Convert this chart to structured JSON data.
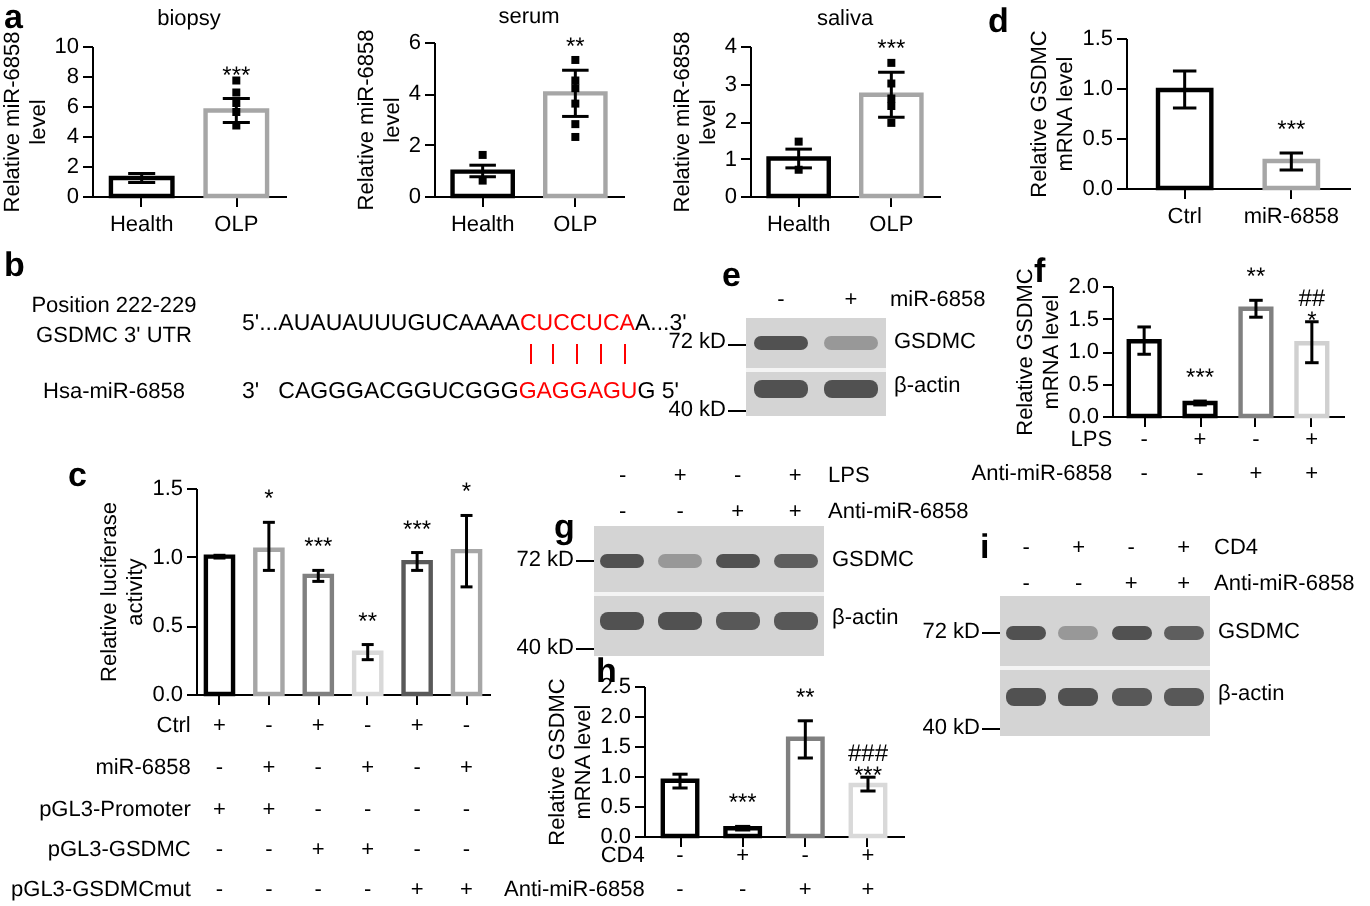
{
  "chart_data": [
    {
      "type": "bar",
      "title": "biopsy",
      "ylabel": "Relative miR-6858\nlevel",
      "categories": [
        "Health",
        "OLP"
      ],
      "ylim": [
        0,
        10
      ],
      "yticks": [
        0,
        2,
        4,
        6,
        8,
        10
      ],
      "marker": "square",
      "annotations": [
        "a"
      ],
      "series": [
        {
          "type": "bar",
          "values": [
            1.2,
            5.7
          ],
          "colors": [
            "#000000",
            "#a6a6a6"
          ],
          "errors": [
            [
              0.9,
              1.5
            ],
            [
              4.9,
              6.5
            ]
          ],
          "value_labels": [
            null,
            "***"
          ]
        },
        {
          "type": "scatter",
          "color": "#000000",
          "x": [
            "OLP",
            "OLP",
            "OLP",
            "OLP",
            "OLP"
          ],
          "values": [
            7.7,
            6.9,
            6.2,
            5.6,
            4.7
          ]
        }
      ]
    },
    {
      "type": "bar",
      "title": "serum",
      "ylabel": "Relative miR-6858\nlevel",
      "categories": [
        "Health",
        "OLP"
      ],
      "ylim": [
        0,
        6
      ],
      "yticks": [
        0,
        2,
        4,
        6
      ],
      "marker": "square",
      "series": [
        {
          "type": "bar",
          "values": [
            0.95,
            4.0
          ],
          "colors": [
            "#000000",
            "#a6a6a6"
          ],
          "errors": [
            [
              0.75,
              1.2
            ],
            [
              3.1,
              4.9
            ]
          ],
          "value_labels": [
            null,
            "**"
          ]
        },
        {
          "type": "scatter",
          "color": "#000000",
          "x": [
            "Health",
            "Health",
            "OLP",
            "OLP",
            "OLP",
            "OLP",
            "OLP",
            "OLP"
          ],
          "values": [
            1.6,
            0.6,
            5.3,
            4.5,
            4.2,
            3.6,
            2.8,
            2.3
          ]
        }
      ]
    },
    {
      "type": "bar",
      "title": "saliva",
      "ylabel": "Relative miR-6858\nlevel",
      "categories": [
        "Health",
        "OLP"
      ],
      "ylim": [
        0,
        4
      ],
      "yticks": [
        0,
        1,
        2,
        3,
        4
      ],
      "marker": "square",
      "series": [
        {
          "type": "bar",
          "values": [
            1.0,
            2.7
          ],
          "colors": [
            "#000000",
            "#a6a6a6"
          ],
          "errors": [
            [
              0.75,
              1.25
            ],
            [
              2.1,
              3.3
            ]
          ],
          "value_labels": [
            null,
            "***"
          ]
        },
        {
          "type": "scatter",
          "color": "#000000",
          "x": [
            "Health",
            "Health",
            "OLP",
            "OLP",
            "OLP",
            "OLP",
            "OLP"
          ],
          "values": [
            1.45,
            0.7,
            3.55,
            3.0,
            2.6,
            2.4,
            1.95
          ]
        }
      ]
    },
    {
      "type": "bar",
      "ylabel": "Relative GSDMC\nmRNA level",
      "categories": [
        "Ctrl",
        "miR-6858"
      ],
      "ylim": [
        0,
        1.5
      ],
      "yticks": [
        {
          "value": 0,
          "label": "0.0"
        },
        {
          "value": 0.5,
          "label": "0.5"
        },
        {
          "value": 1,
          "label": "1.0"
        },
        {
          "value": 1.5,
          "label": "1.5"
        }
      ],
      "annotations": [
        "d"
      ],
      "series": [
        {
          "type": "bar",
          "values": [
            0.98,
            0.27
          ],
          "colors": [
            "#000000",
            "#a6a6a6"
          ],
          "errors": [
            [
              0.8,
              1.17
            ],
            [
              0.18,
              0.35
            ]
          ],
          "value_labels": [
            null,
            "***"
          ]
        }
      ]
    },
    {
      "type": "other",
      "annotations": [
        "b",
        "Position 222-229",
        "GSDMC 3' UTR",
        "Hsa-miR-6858",
        "5'...AUAUAUUUGUCAAAA",
        "CUCCUCA",
        "A...3'",
        "3'   CAGGGACGGUCGGG",
        "GAGGAGU",
        "G 5'"
      ]
    },
    {
      "type": "other",
      "annotations": [
        "e",
        "- + miR-6858",
        "72 kD",
        "40 kD",
        "GSDMC",
        "β-actin"
      ]
    },
    {
      "type": "bar",
      "ylabel": "Relative GSDMC\nmRNA level",
      "categories": [
        null,
        null,
        null,
        null
      ],
      "ylim": [
        0,
        2
      ],
      "yticks": [
        {
          "value": 0,
          "label": "0.0"
        },
        {
          "value": 0.5,
          "label": "0.5"
        },
        {
          "value": 1,
          "label": "1.0"
        },
        {
          "value": 1.5,
          "label": "1.5"
        },
        {
          "value": 2,
          "label": "2.0"
        }
      ],
      "annotations": [
        "f",
        "LPS - + - +",
        "Anti-miR-6858 - - + +"
      ],
      "series": [
        {
          "type": "bar",
          "values": [
            1.15,
            0.2,
            1.65,
            1.12
          ],
          "colors": [
            "#000000",
            "#000000",
            "#808080",
            "#d0d0d0"
          ],
          "errors": [
            [
              0.95,
              1.37
            ],
            [
              0.17,
              0.23
            ],
            [
              1.52,
              1.78
            ],
            [
              0.82,
              1.45
            ]
          ],
          "value_labels": [
            null,
            "***",
            "**",
            "##\n*"
          ]
        }
      ]
    },
    {
      "type": "bar",
      "ylabel": "Relative luciferase\nactivity",
      "categories": [
        null,
        null,
        null,
        null,
        null,
        null
      ],
      "ylim": [
        0,
        1.5
      ],
      "yticks": [
        {
          "value": 0,
          "label": "0.0"
        },
        {
          "value": 0.5,
          "label": "0.5"
        },
        {
          "value": 1,
          "label": "1.0"
        },
        {
          "value": 1.5,
          "label": "1.5"
        }
      ],
      "annotations": [
        "c",
        "Ctrl + - + - + -",
        "miR-6858 - + - + - +",
        "pGL3-Promoter + + - - - -",
        "pGL3-GSDMC - - + + - -",
        "pGL3-GSDMCmut - - - - + +"
      ],
      "series": [
        {
          "type": "bar",
          "values": [
            1.0,
            1.05,
            0.86,
            0.3,
            0.96,
            1.04
          ],
          "colors": [
            "#000000",
            "#a6a6a6",
            "#808080",
            "#d9d9d9",
            "#595959",
            "#a6a6a6"
          ],
          "errors": [
            [
              0.99,
              1.01
            ],
            [
              0.9,
              1.25
            ],
            [
              0.82,
              0.9
            ],
            [
              0.25,
              0.36
            ],
            [
              0.9,
              1.03
            ],
            [
              0.78,
              1.3
            ]
          ],
          "value_labels": [
            null,
            "*",
            "***",
            "**",
            "***",
            "*"
          ]
        }
      ]
    },
    {
      "type": "other",
      "annotations": [
        "g",
        "- + - + LPS",
        "- - + + Anti-miR-6858",
        "72 kD",
        "40 kD",
        "GSDMC",
        "β-actin"
      ]
    },
    {
      "type": "other",
      "annotations": [
        "i",
        "- + - + CD4",
        "- - + + Anti-miR-6858",
        "72 kD",
        "40 kD",
        "GSDMC",
        "β-actin"
      ]
    },
    {
      "type": "bar",
      "ylabel": "Relative GSDMC\nmRNA level",
      "categories": [
        null,
        null,
        null,
        null
      ],
      "ylim": [
        0,
        2.5
      ],
      "yticks": [
        {
          "value": 0,
          "label": "0.0"
        },
        {
          "value": 0.5,
          "label": "0.5"
        },
        {
          "value": 1,
          "label": "1.0"
        },
        {
          "value": 1.5,
          "label": "1.5"
        },
        {
          "value": 2,
          "label": "2.0"
        },
        {
          "value": 2.5,
          "label": "2.5"
        }
      ],
      "annotations": [
        "h",
        "CD4 - + - +",
        "Anti-miR-6858 - - + +"
      ],
      "series": [
        {
          "type": "bar",
          "values": [
            0.92,
            0.13,
            1.62,
            0.85
          ],
          "colors": [
            "#000000",
            "#000000",
            "#808080",
            "#d9d9d9"
          ],
          "errors": [
            [
              0.8,
              1.03
            ],
            [
              0.1,
              0.16
            ],
            [
              1.3,
              1.92
            ],
            [
              0.75,
              0.98
            ]
          ],
          "value_labels": [
            null,
            "***",
            "**",
            "###\n***"
          ]
        }
      ]
    }
  ]
}
